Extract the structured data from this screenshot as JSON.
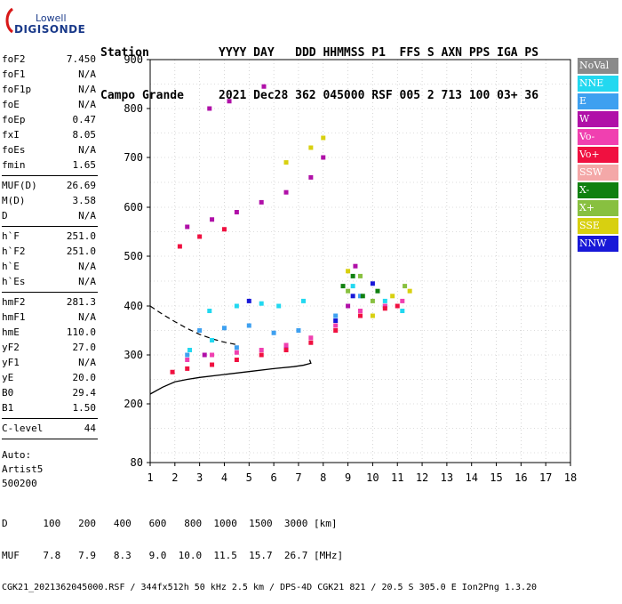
{
  "logo": {
    "line1": "Lowell",
    "line2": "DIGISONDE"
  },
  "header": {
    "row1": "Station          YYYY DAY   DDD HHMMSS P1  FFS S AXN PPS IGA PS",
    "row2": "Campo Grande     2021 Dec28 362 045000 RSF 005 2 713 100 03+ 36"
  },
  "params": {
    "group1": [
      {
        "k": "foF2",
        "v": "7.450"
      },
      {
        "k": "foF1",
        "v": "N/A"
      },
      {
        "k": "foF1p",
        "v": "N/A"
      },
      {
        "k": "foE",
        "v": "N/A"
      },
      {
        "k": "foEp",
        "v": "0.47"
      },
      {
        "k": "fxI",
        "v": "8.05"
      },
      {
        "k": "foEs",
        "v": "N/A"
      },
      {
        "k": "fmin",
        "v": "1.65"
      }
    ],
    "group2": [
      {
        "k": "MUF(D)",
        "v": "26.69"
      },
      {
        "k": "M(D)",
        "v": "3.58"
      },
      {
        "k": "D",
        "v": "N/A"
      }
    ],
    "group3": [
      {
        "k": "h`F",
        "v": "251.0"
      },
      {
        "k": "h`F2",
        "v": "251.0"
      },
      {
        "k": "h`E",
        "v": "N/A"
      },
      {
        "k": "h`Es",
        "v": "N/A"
      }
    ],
    "group4": [
      {
        "k": "hmF2",
        "v": "281.3"
      },
      {
        "k": "hmF1",
        "v": "N/A"
      },
      {
        "k": "hmE",
        "v": "110.0"
      },
      {
        "k": "yF2",
        "v": "27.0"
      },
      {
        "k": "yF1",
        "v": "N/A"
      },
      {
        "k": "yE",
        "v": "20.0"
      },
      {
        "k": "B0",
        "v": "29.4"
      },
      {
        "k": "B1",
        "v": "1.50"
      }
    ],
    "clevel": {
      "k": "C-level",
      "v": "44"
    },
    "auto": [
      "Auto:",
      "Artist5",
      "500200"
    ]
  },
  "legend": [
    {
      "label": "NoVal",
      "color": "#8a8a8a"
    },
    {
      "label": "NNE",
      "color": "#22d8f0"
    },
    {
      "label": "E",
      "color": "#3ea0f0"
    },
    {
      "label": "W",
      "color": "#b010a8"
    },
    {
      "label": "Vo-",
      "color": "#f040b0"
    },
    {
      "label": "Vo+",
      "color": "#f01040"
    },
    {
      "label": "SSW",
      "color": "#f4a8a8"
    },
    {
      "label": "X-",
      "color": "#108010"
    },
    {
      "label": "X+",
      "color": "#88c040"
    },
    {
      "label": "SSE",
      "color": "#d8d010"
    },
    {
      "label": "NNW",
      "color": "#1818d8"
    }
  ],
  "chart_data": {
    "type": "scatter",
    "xlim": [
      1,
      18
    ],
    "ylim": [
      80,
      900
    ],
    "xticks": [
      1,
      2,
      3,
      4,
      5,
      6,
      7,
      8,
      9,
      10,
      11,
      12,
      13,
      14,
      15,
      16,
      17,
      18
    ],
    "yticks": [
      80,
      200,
      300,
      400,
      500,
      600,
      700,
      800,
      900
    ],
    "grid": true,
    "series": [
      {
        "name": "NNE",
        "values": [
          [
            3.4,
            390
          ],
          [
            4.5,
            400
          ],
          [
            5.5,
            405
          ],
          [
            6.2,
            400
          ],
          [
            7.2,
            410
          ],
          [
            9.2,
            440
          ],
          [
            10.5,
            410
          ],
          [
            11.2,
            390
          ],
          [
            2.6,
            310
          ],
          [
            3.5,
            330
          ]
        ]
      },
      {
        "name": "E",
        "values": [
          [
            3.0,
            350
          ],
          [
            4.0,
            355
          ],
          [
            5.0,
            360
          ],
          [
            6.0,
            345
          ],
          [
            7.0,
            350
          ],
          [
            8.5,
            380
          ],
          [
            9.5,
            420
          ],
          [
            10.5,
            400
          ],
          [
            2.5,
            300
          ],
          [
            4.5,
            315
          ]
        ]
      },
      {
        "name": "W",
        "values": [
          [
            2.5,
            560
          ],
          [
            3.5,
            575
          ],
          [
            4.5,
            590
          ],
          [
            5.5,
            610
          ],
          [
            6.5,
            630
          ],
          [
            7.5,
            660
          ],
          [
            8.0,
            700
          ],
          [
            3.4,
            800
          ],
          [
            4.2,
            815
          ],
          [
            5.6,
            845
          ],
          [
            3.2,
            300
          ],
          [
            6.5,
            315
          ],
          [
            9.0,
            400
          ],
          [
            9.3,
            480
          ]
        ]
      },
      {
        "name": "Vo-",
        "values": [
          [
            2.5,
            290
          ],
          [
            3.5,
            300
          ],
          [
            4.5,
            305
          ],
          [
            5.5,
            310
          ],
          [
            6.5,
            320
          ],
          [
            7.5,
            335
          ],
          [
            8.5,
            360
          ],
          [
            9.5,
            390
          ],
          [
            10.5,
            400
          ],
          [
            11.2,
            410
          ]
        ]
      },
      {
        "name": "Vo+",
        "values": [
          [
            1.9,
            265
          ],
          [
            2.5,
            272
          ],
          [
            3.5,
            280
          ],
          [
            4.5,
            290
          ],
          [
            5.5,
            300
          ],
          [
            6.5,
            310
          ],
          [
            7.5,
            325
          ],
          [
            8.5,
            350
          ],
          [
            9.5,
            380
          ],
          [
            10.5,
            395
          ],
          [
            11.0,
            400
          ],
          [
            2.2,
            520
          ],
          [
            3.0,
            540
          ],
          [
            4.0,
            555
          ]
        ]
      },
      {
        "name": "X-",
        "values": [
          [
            8.8,
            440
          ],
          [
            9.2,
            460
          ],
          [
            9.6,
            420
          ],
          [
            10.2,
            430
          ]
        ]
      },
      {
        "name": "X+",
        "values": [
          [
            9.0,
            430
          ],
          [
            9.5,
            460
          ],
          [
            10.0,
            410
          ],
          [
            11.3,
            440
          ]
        ]
      },
      {
        "name": "SSE",
        "values": [
          [
            6.5,
            690
          ],
          [
            7.5,
            720
          ],
          [
            8.0,
            740
          ],
          [
            9.0,
            470
          ],
          [
            10.0,
            380
          ],
          [
            10.8,
            420
          ],
          [
            11.5,
            430
          ]
        ]
      },
      {
        "name": "NNW",
        "values": [
          [
            5.0,
            410
          ],
          [
            8.5,
            370
          ],
          [
            9.2,
            420
          ],
          [
            10.0,
            445
          ]
        ]
      }
    ],
    "traces": {
      "solid": [
        [
          1.0,
          220
        ],
        [
          1.5,
          234
        ],
        [
          2.0,
          245
        ],
        [
          2.5,
          250
        ],
        [
          3.0,
          254
        ],
        [
          4.0,
          260
        ],
        [
          5.0,
          266
        ],
        [
          6.0,
          272
        ],
        [
          6.8,
          276
        ],
        [
          7.2,
          279
        ],
        [
          7.5,
          283
        ],
        [
          7.45,
          290
        ]
      ],
      "dashed": [
        [
          1.0,
          400
        ],
        [
          1.5,
          383
        ],
        [
          2.0,
          368
        ],
        [
          2.5,
          354
        ],
        [
          3.0,
          342
        ],
        [
          3.5,
          333
        ],
        [
          4.0,
          326
        ],
        [
          4.5,
          321
        ]
      ]
    },
    "bottom_scale": {
      "D_label": "D",
      "D_values": [
        "100",
        "200",
        "400",
        "600",
        "800",
        "1000",
        "1500",
        "3000"
      ],
      "D_unit": "[km]",
      "MUF_label": "MUF",
      "MUF_values": [
        "7.8",
        "7.9",
        "8.3",
        "9.0",
        "10.0",
        "11.5",
        "15.7",
        "26.7"
      ],
      "MUF_unit": "[MHz]"
    }
  },
  "footer_line": "CGK21_2021362045000.RSF / 344fx512h 50 kHz 2.5 km / DPS-4D CGK21 821 / 20.5 S 305.0 E Ion2Png 1.3.20"
}
